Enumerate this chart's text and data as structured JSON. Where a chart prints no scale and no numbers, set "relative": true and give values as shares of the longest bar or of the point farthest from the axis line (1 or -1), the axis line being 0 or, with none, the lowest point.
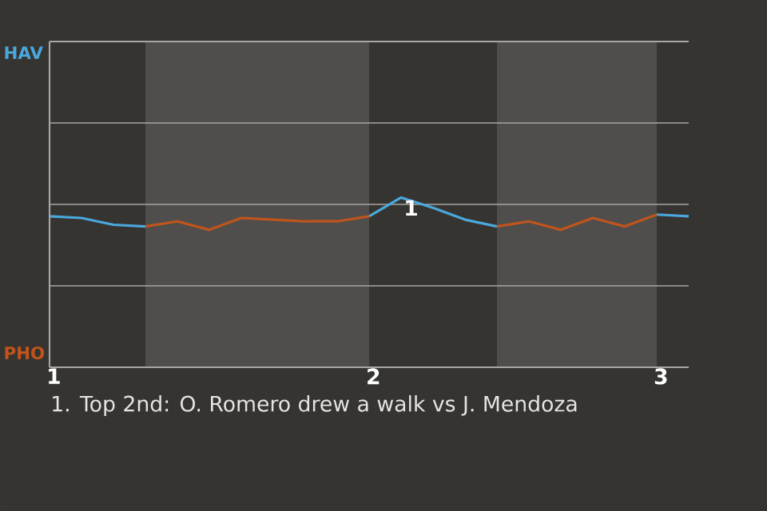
{
  "chart_data": {
    "type": "line",
    "relative": true,
    "categories": [
      "1",
      null,
      null,
      null,
      null,
      null,
      null,
      null,
      null,
      null,
      "2",
      null,
      null,
      null,
      null,
      null,
      null,
      null,
      null,
      "3",
      null
    ],
    "series": [
      {
        "color": "#4aa8dc",
        "values": [
          0.89,
          0.88,
          0.84,
          0.83,
          null,
          null,
          null,
          null,
          null,
          null,
          0.89,
          1,
          0.94,
          0.87,
          0.83,
          null,
          null,
          null,
          null,
          0.9,
          0.89
        ]
      },
      {
        "color": "#c0541c",
        "values": [
          null,
          null,
          null,
          0.83,
          0.86,
          0.81,
          0.88,
          0.87,
          0.86,
          0.86,
          0.89,
          null,
          null,
          null,
          0.83,
          0.86,
          0.81,
          0.88,
          0.83,
          0.9,
          null
        ]
      }
    ],
    "ref_lines": [
      {
        "axis": "y",
        "value": 0.48,
        "color": "#a6a6a6"
      },
      {
        "axis": "y",
        "value": 0.96,
        "color": "#a6a6a6"
      },
      {
        "axis": "y",
        "value": 1.44,
        "color": "#a6a6a6"
      }
    ],
    "marker": "none",
    "line_style": "solid",
    "annotations": [
      {
        "text": "1",
        "y": 1
      },
      "HAV",
      "PHO",
      "1. Top 2nd: O. Romero drew a walk vs J. Mendoza"
    ]
  }
}
